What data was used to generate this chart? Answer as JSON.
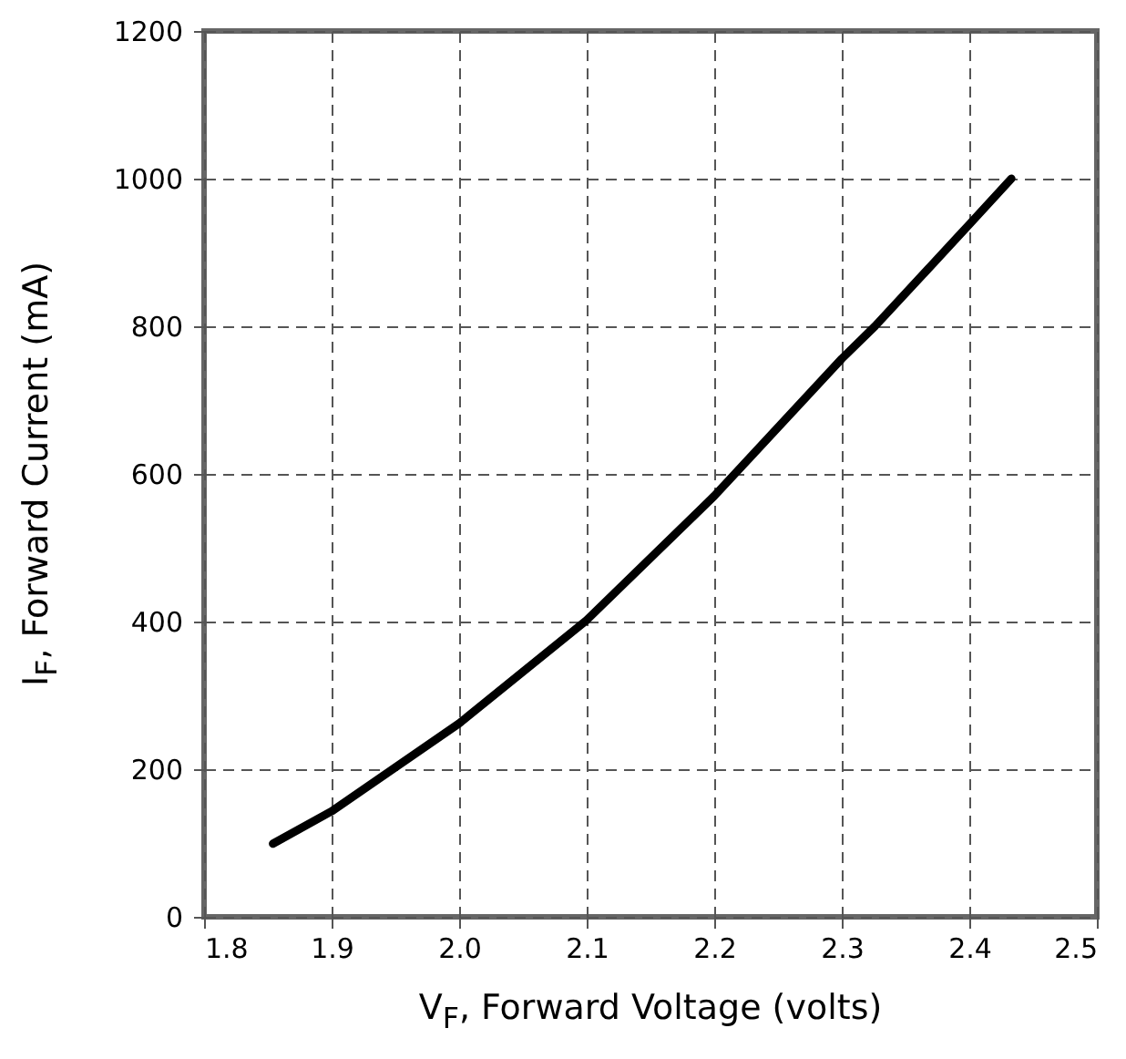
{
  "chart_data": {
    "type": "line",
    "xlabel": "V$_{F}$, Forward Voltage (volts)",
    "ylabel": "I$_{F}$, Forward Current (mA)",
    "x": [
      1.854,
      1.9,
      2.0,
      2.1,
      2.2,
      2.3,
      2.326,
      2.4,
      2.433
    ],
    "series": [
      {
        "color": "#000000",
        "values": [
          99,
          143,
          262,
          402,
          570,
          756,
          800,
          938,
          1000
        ]
      }
    ],
    "xlim": [
      1.8,
      2.5
    ],
    "xticks": [
      1.8,
      1.9,
      {
        "value": 2,
        "label": "2.0"
      },
      2.1,
      2.2,
      2.3,
      2.4,
      2.5
    ],
    "ylim": [
      0,
      1200
    ],
    "yticks": [
      0,
      200,
      400,
      600,
      800,
      1000,
      1200
    ],
    "grid": true,
    "line_style": "solid",
    "marker": "none"
  }
}
